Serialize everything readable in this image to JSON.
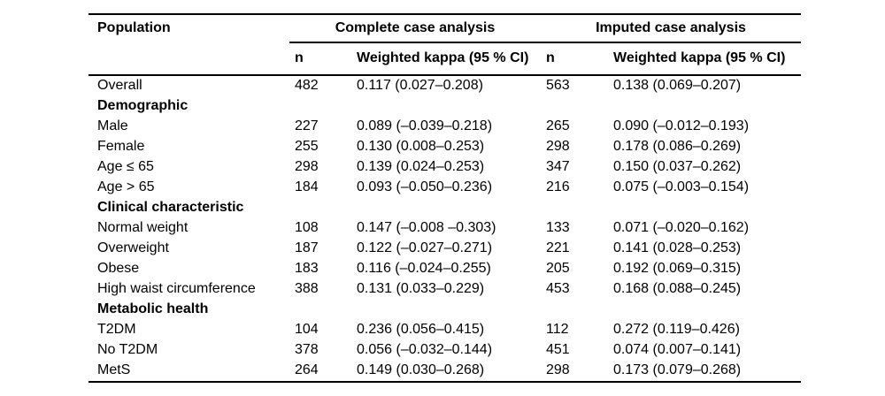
{
  "table": {
    "headers": {
      "population": "Population",
      "groups": [
        {
          "label": "Complete case analysis",
          "n": "n",
          "kappa": "Weighted kappa (95 % CI)"
        },
        {
          "label": "Imputed case analysis",
          "n": "n",
          "kappa": "Weighted kappa (95 % CI)"
        }
      ]
    },
    "rows": [
      {
        "section": false,
        "label": "Overall",
        "cc_n": "482",
        "cc_kappa": "0.117 (0.027–0.208)",
        "ic_n": "563",
        "ic_kappa": "0.138 (0.069–0.207)"
      },
      {
        "section": true,
        "label": "Demographic",
        "cc_n": "",
        "cc_kappa": "",
        "ic_n": "",
        "ic_kappa": ""
      },
      {
        "section": false,
        "label": "Male",
        "cc_n": "227",
        "cc_kappa": "0.089 (–0.039–0.218)",
        "ic_n": "265",
        "ic_kappa": "0.090 (–0.012–0.193)"
      },
      {
        "section": false,
        "label": "Female",
        "cc_n": "255",
        "cc_kappa": "0.130 (0.008–0.253)",
        "ic_n": "298",
        "ic_kappa": "0.178 (0.086–0.269)"
      },
      {
        "section": false,
        "label": "Age ≤ 65",
        "cc_n": "298",
        "cc_kappa": "0.139 (0.024–0.253)",
        "ic_n": "347",
        "ic_kappa": "0.150 (0.037–0.262)"
      },
      {
        "section": false,
        "label": "Age > 65",
        "cc_n": "184",
        "cc_kappa": "0.093 (–0.050–0.236)",
        "ic_n": "216",
        "ic_kappa": "0.075 (–0.003–0.154)"
      },
      {
        "section": true,
        "label": "Clinical characteristic",
        "cc_n": "",
        "cc_kappa": "",
        "ic_n": "",
        "ic_kappa": ""
      },
      {
        "section": false,
        "label": "Normal weight",
        "cc_n": "108",
        "cc_kappa": "0.147 (–0.008 –0.303)",
        "ic_n": "133",
        "ic_kappa": "0.071 (–0.020–0.162)"
      },
      {
        "section": false,
        "label": "Overweight",
        "cc_n": "187",
        "cc_kappa": "0.122 (–0.027–0.271)",
        "ic_n": "221",
        "ic_kappa": "0.141 (0.028–0.253)"
      },
      {
        "section": false,
        "label": "Obese",
        "cc_n": "183",
        "cc_kappa": "0.116 (–0.024–0.255)",
        "ic_n": "205",
        "ic_kappa": "0.192 (0.069–0.315)"
      },
      {
        "section": false,
        "label": "High waist circumference",
        "cc_n": "388",
        "cc_kappa": "0.131 (0.033–0.229)",
        "ic_n": "453",
        "ic_kappa": "0.168 (0.088–0.245)"
      },
      {
        "section": true,
        "label": "Metabolic health",
        "cc_n": "",
        "cc_kappa": "",
        "ic_n": "",
        "ic_kappa": ""
      },
      {
        "section": false,
        "label": "T2DM",
        "cc_n": "104",
        "cc_kappa": "0.236 (0.056–0.415)",
        "ic_n": "112",
        "ic_kappa": "0.272 (0.119–0.426)"
      },
      {
        "section": false,
        "label": "No T2DM",
        "cc_n": "378",
        "cc_kappa": "0.056 (–0.032–0.144)",
        "ic_n": "451",
        "ic_kappa": "0.074 (0.007–0.141)"
      },
      {
        "section": false,
        "label": "MetS",
        "cc_n": "264",
        "cc_kappa": "0.149 (0.030–0.268)",
        "ic_n": "298",
        "ic_kappa": "0.173 (0.079–0.268)"
      }
    ]
  }
}
